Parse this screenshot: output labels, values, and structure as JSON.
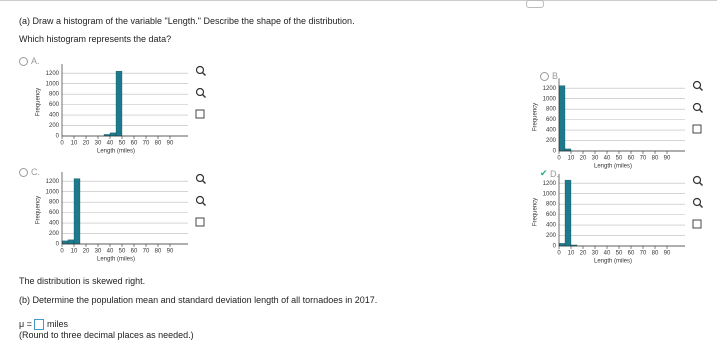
{
  "header": {
    "part_a": "(a) Draw a histogram of the variable \"Length.\" Describe the shape of the distribution.",
    "question": "Which histogram represents the data?"
  },
  "options": [
    {
      "letter": "A.",
      "chart": {
        "type": "histogram",
        "bins": [
          0,
          5,
          10,
          15,
          20,
          25,
          30,
          35,
          40,
          45,
          50,
          55,
          60,
          65,
          70,
          75,
          80,
          85,
          90
        ],
        "counts": [
          0,
          0,
          0,
          0,
          0,
          0,
          0,
          30,
          60,
          1240,
          0,
          0,
          0,
          0,
          0,
          0,
          0,
          0
        ],
        "color": "#1d7a8c",
        "xlim": [
          0,
          90
        ],
        "xticks": [
          0,
          10,
          20,
          30,
          40,
          50,
          60,
          70,
          80,
          90
        ],
        "ylim": [
          0,
          1300
        ],
        "yticks": [
          0,
          200,
          400,
          600,
          800,
          1000,
          1200
        ],
        "xlabel": "Length (miles)",
        "ylabel": "Frequency",
        "grid": true
      }
    },
    {
      "letter": "B.",
      "chart": {
        "type": "histogram",
        "bins": [
          0,
          5,
          10,
          15,
          20,
          25,
          30,
          35,
          40,
          45,
          50,
          55,
          60,
          65,
          70,
          75,
          80,
          85,
          90
        ],
        "counts": [
          1250,
          40,
          0,
          0,
          0,
          0,
          0,
          0,
          0,
          0,
          0,
          0,
          0,
          0,
          0,
          0,
          0,
          0
        ],
        "color": "#1d7a8c",
        "xlim": [
          0,
          90
        ],
        "xticks": [
          0,
          10,
          20,
          30,
          40,
          50,
          60,
          70,
          80,
          90
        ],
        "ylim": [
          0,
          1300
        ],
        "yticks": [
          0,
          200,
          400,
          600,
          800,
          1000,
          1200
        ],
        "xlabel": "Length (miles)",
        "ylabel": "Frequency",
        "grid": true
      }
    },
    {
      "letter": "C.",
      "chart": {
        "type": "histogram",
        "bins": [
          0,
          5,
          10,
          15,
          20,
          25,
          30,
          35,
          40,
          45,
          50,
          55,
          60,
          65,
          70,
          75,
          80,
          85,
          90
        ],
        "counts": [
          60,
          80,
          1250,
          0,
          0,
          0,
          0,
          0,
          0,
          0,
          0,
          0,
          0,
          0,
          0,
          0,
          0,
          0
        ],
        "color": "#1d7a8c",
        "xlim": [
          0,
          90
        ],
        "xticks": [
          0,
          10,
          20,
          30,
          40,
          50,
          60,
          70,
          80,
          90
        ],
        "ylim": [
          0,
          1300
        ],
        "yticks": [
          0,
          200,
          400,
          600,
          800,
          1000,
          1200
        ],
        "xlabel": "Length (miles)",
        "ylabel": "Frequency",
        "grid": true
      }
    },
    {
      "letter": "D.",
      "chart": {
        "type": "histogram",
        "bins": [
          0,
          5,
          10,
          15,
          20,
          25,
          30,
          35,
          40,
          45,
          50,
          55,
          60,
          65,
          70,
          75,
          80,
          85,
          90
        ],
        "counts": [
          50,
          1260,
          20,
          0,
          0,
          0,
          0,
          0,
          0,
          0,
          0,
          0,
          0,
          0,
          0,
          0,
          0,
          0
        ],
        "color": "#1d7a8c",
        "xlim": [
          0,
          90
        ],
        "xticks": [
          0,
          10,
          20,
          30,
          40,
          50,
          60,
          70,
          80,
          90
        ],
        "ylim": [
          0,
          1300
        ],
        "yticks": [
          0,
          200,
          400,
          600,
          800,
          1000,
          1200
        ],
        "xlabel": "Length (miles)",
        "ylabel": "Frequency",
        "grid": true
      }
    }
  ],
  "shape": {
    "prefix": "The distribution is",
    "answer": "skewed right."
  },
  "part_b": {
    "prompt": "(b) Determine the population mean and standard deviation length of all tornadoes in 2017.",
    "mu": "μ =",
    "unit": "miles",
    "note": "(Round to three decimal places as needed.)"
  }
}
